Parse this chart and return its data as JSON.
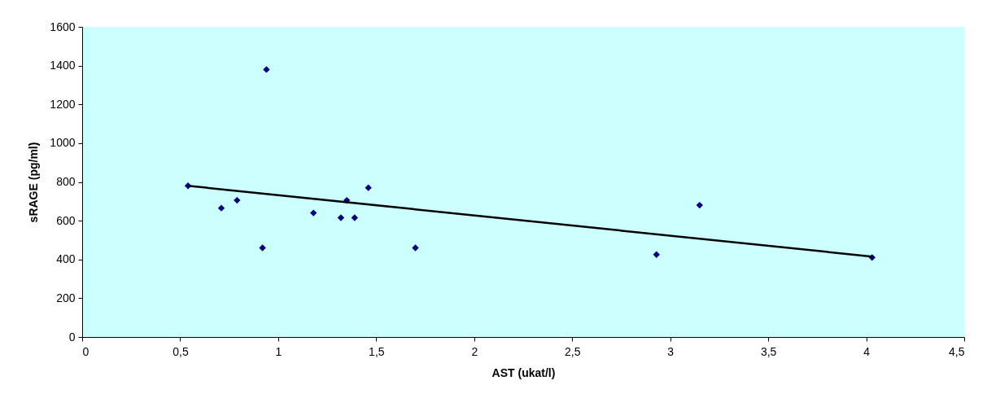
{
  "chart_data": {
    "type": "scatter",
    "xlabel": "AST (ukat/l)",
    "ylabel": "sRAGE (pg/ml)",
    "xlim": [
      0,
      4.5
    ],
    "ylim": [
      0,
      1600
    ],
    "xticks": [
      0,
      {
        "value": 0.5,
        "label": "0,5"
      },
      1,
      {
        "value": 1.5,
        "label": "1,5"
      },
      2,
      {
        "value": 2.5,
        "label": "2,5"
      },
      3,
      {
        "value": 3.5,
        "label": "3,5"
      },
      4,
      {
        "value": 4.5,
        "label": "4,5"
      }
    ],
    "yticks": [
      0,
      200,
      400,
      600,
      800,
      1000,
      1200,
      1400,
      1600
    ],
    "grid": false,
    "series": [
      {
        "marker": "diamond",
        "color": "#000080",
        "x": [
          0.54,
          0.71,
          0.79,
          0.92,
          0.94,
          1.18,
          1.32,
          1.35,
          1.39,
          1.46,
          1.7,
          2.93,
          3.15,
          4.03
        ],
        "values": [
          780,
          665,
          705,
          460,
          1380,
          640,
          615,
          705,
          615,
          770,
          460,
          425,
          680,
          410
        ]
      },
      {
        "type": "line",
        "line_style": "solid",
        "color": "#000000",
        "x": [
          0.54,
          4.03
        ],
        "values": [
          780,
          415
        ]
      }
    ]
  }
}
